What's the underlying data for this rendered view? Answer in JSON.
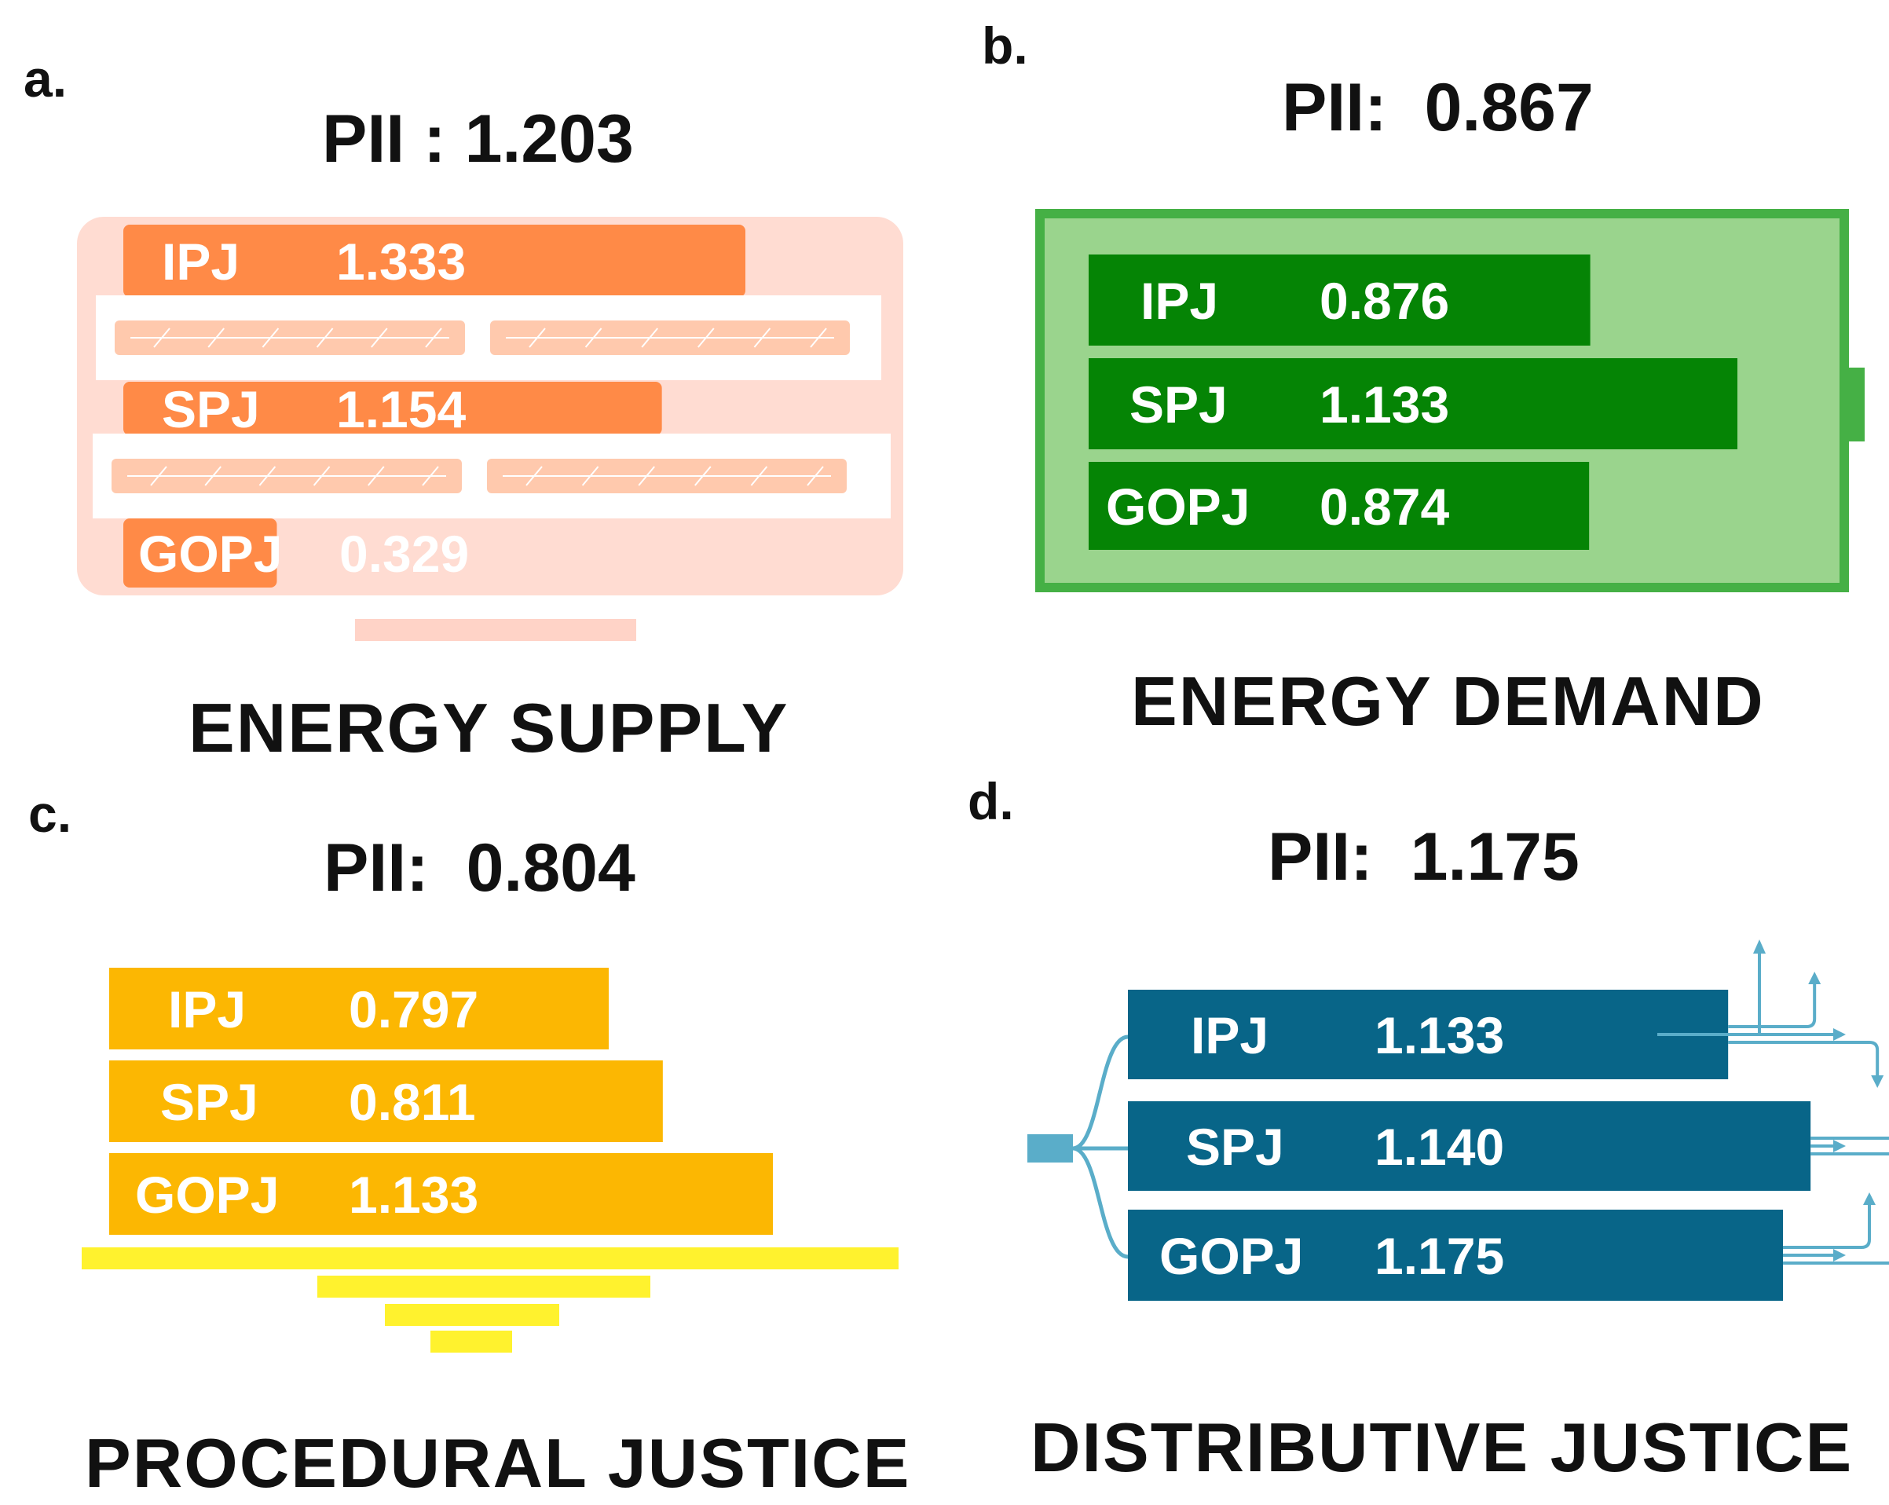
{
  "chart_data": [
    {
      "panel": "a.",
      "type": "bar",
      "orientation": "horizontal",
      "title": "PII：1.203",
      "pii_label": "PII",
      "pii_value": "1.203",
      "caption": "ENERGY SUPPLY",
      "categories": [
        "IPJ",
        "SPJ",
        "GOPJ"
      ],
      "values": [
        1.333,
        1.154,
        0.329
      ],
      "value_labels": [
        "1.333",
        "1.154",
        "0.329"
      ],
      "colors": {
        "bar": "#FF8A47",
        "frame": "#FFD3C7"
      }
    },
    {
      "panel": "b.",
      "type": "bar",
      "orientation": "horizontal",
      "title": "PII：0.867",
      "pii_label": "PII",
      "pii_value": "0.867",
      "caption": "ENERGY DEMAND",
      "categories": [
        "IPJ",
        "SPJ",
        "GOPJ"
      ],
      "values": [
        0.876,
        1.133,
        0.874
      ],
      "value_labels": [
        "0.876",
        "1.133",
        "0.874"
      ],
      "colors": {
        "bar": "#058405",
        "frame": "#45B045",
        "fill": "#9AD48D"
      }
    },
    {
      "panel": "c.",
      "type": "bar",
      "orientation": "horizontal",
      "title": "PII：0.804",
      "pii_label": "PII",
      "pii_value": "0.804",
      "caption": "PROCEDURAL JUSTICE",
      "categories": [
        "IPJ",
        "SPJ",
        "GOPJ"
      ],
      "values": [
        0.797,
        0.811,
        1.133
      ],
      "value_labels": [
        "0.797",
        "0.811",
        "1.133"
      ],
      "colors": {
        "bar": "#FCB702",
        "base": "#FFF22E"
      }
    },
    {
      "panel": "d.",
      "type": "bar",
      "orientation": "horizontal",
      "title": "PII：1.175",
      "pii_label": "PII",
      "pii_value": "1.175",
      "caption": "DISTRIBUTIVE JUSTICE",
      "categories": [
        "IPJ",
        "SPJ",
        "GOPJ"
      ],
      "values": [
        1.133,
        1.14,
        1.175
      ],
      "value_labels": [
        "1.133",
        "1.140",
        "1.175"
      ],
      "colors": {
        "bar": "#086588",
        "line": "#5AADC9"
      }
    }
  ]
}
